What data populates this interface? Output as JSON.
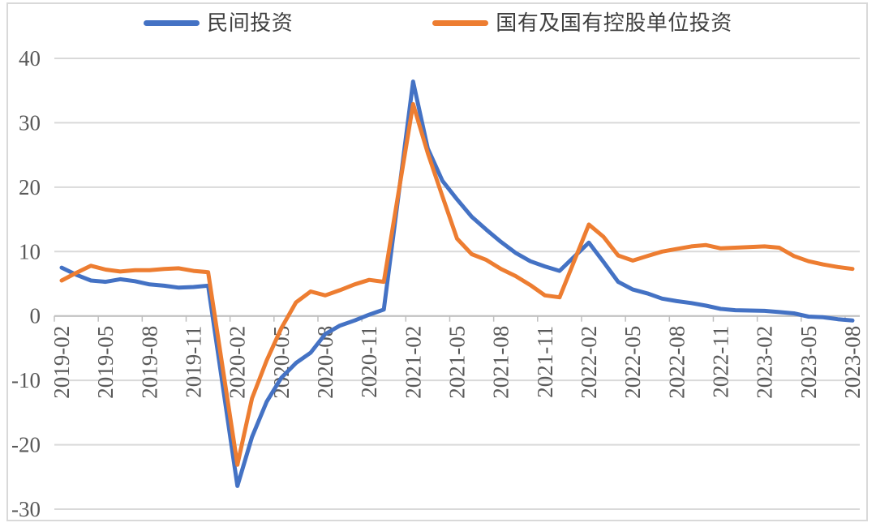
{
  "legend": {
    "series": [
      {
        "label": "民间投资",
        "color": "#4472C4"
      },
      {
        "label": "国有及国有控股单位投资",
        "color": "#ED7D31"
      }
    ]
  },
  "colors": {
    "background": "#FFFFFF",
    "border": "#D9D9D9",
    "gridline": "#D9D9D9",
    "axis": "#BFBFBF",
    "tick_label": "#595959",
    "legend_text": "#404040"
  },
  "chart_data": {
    "type": "line",
    "title": "",
    "xlabel": "",
    "ylabel": "",
    "ylim": [
      -30,
      40
    ],
    "yticks": [
      40,
      30,
      20,
      10,
      0,
      -10,
      -20,
      -30
    ],
    "grid": true,
    "legend_position": "top",
    "x": [
      "2019-02",
      "2019-03",
      "2019-04",
      "2019-05",
      "2019-06",
      "2019-07",
      "2019-08",
      "2019-09",
      "2019-10",
      "2019-11",
      "2019-12",
      "2020-02",
      "2020-03",
      "2020-04",
      "2020-05",
      "2020-06",
      "2020-07",
      "2020-08",
      "2020-09",
      "2020-10",
      "2020-11",
      "2020-12",
      "2021-02",
      "2021-03",
      "2021-04",
      "2021-05",
      "2021-06",
      "2021-07",
      "2021-08",
      "2021-09",
      "2021-10",
      "2021-11",
      "2021-12",
      "2022-02",
      "2022-03",
      "2022-04",
      "2022-05",
      "2022-06",
      "2022-07",
      "2022-08",
      "2022-09",
      "2022-10",
      "2022-11",
      "2022-12",
      "2023-02",
      "2023-03",
      "2023-04",
      "2023-05",
      "2023-06",
      "2023-07",
      "2023-08"
    ],
    "x_tick_labels": [
      "2019-02",
      "2019-05",
      "2019-08",
      "2019-11",
      "2020-02",
      "2020-05",
      "2020-08",
      "2020-11",
      "2021-02",
      "2021-05",
      "2021-08",
      "2021-11",
      "2022-02",
      "2022-05",
      "2022-08",
      "2022-11",
      "2023-02",
      "2023-05",
      "2023-08"
    ],
    "series": [
      {
        "name": "民间投资",
        "color": "#4472C4",
        "values": [
          7.5,
          6.4,
          5.5,
          5.3,
          5.7,
          5.4,
          4.9,
          4.7,
          4.4,
          4.5,
          4.7,
          -26.4,
          -18.8,
          -13.3,
          -9.6,
          -7.3,
          -5.7,
          -2.8,
          -1.5,
          -0.7,
          0.2,
          1.0,
          36.4,
          26.0,
          21.0,
          18.1,
          15.4,
          13.4,
          11.5,
          9.8,
          8.5,
          7.7,
          7.0,
          11.4,
          8.4,
          5.3,
          4.1,
          3.5,
          2.7,
          2.3,
          2.0,
          1.6,
          1.1,
          0.9,
          0.8,
          0.6,
          0.4,
          -0.1,
          -0.2,
          -0.5,
          -0.7
        ]
      },
      {
        "name": "国有及国有控股单位投资",
        "color": "#ED7D31",
        "values": [
          5.5,
          6.7,
          7.8,
          7.2,
          6.9,
          7.1,
          7.1,
          7.3,
          7.4,
          7.0,
          6.8,
          -23.1,
          -12.8,
          -6.9,
          -1.9,
          2.1,
          3.8,
          3.2,
          4.0,
          4.9,
          5.6,
          5.3,
          32.9,
          25.3,
          18.6,
          12.0,
          9.6,
          8.7,
          7.3,
          6.2,
          4.8,
          3.2,
          2.9,
          14.2,
          12.3,
          9.4,
          8.6,
          9.3,
          10.0,
          10.4,
          10.8,
          11.0,
          10.5,
          10.6,
          10.8,
          10.6,
          9.3,
          8.5,
          8.0,
          7.6,
          7.3
        ]
      }
    ]
  }
}
